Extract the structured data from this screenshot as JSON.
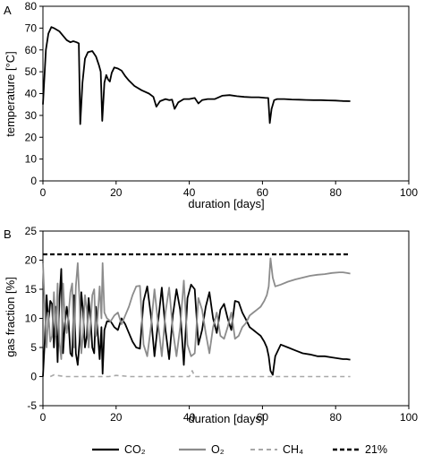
{
  "chart_data": [
    {
      "panel": "A",
      "type": "line",
      "xlabel": "duration [days]",
      "ylabel": "temperature [°C]",
      "xlim": [
        0,
        100
      ],
      "ylim": [
        0,
        80
      ],
      "xticks": [
        0,
        20,
        40,
        60,
        80,
        100
      ],
      "yticks": [
        0,
        10,
        20,
        30,
        40,
        50,
        60,
        70,
        80
      ],
      "grid": false,
      "series": [
        {
          "color": "#000000",
          "x": [
            0,
            0.8,
            1.5,
            2.3,
            3.0,
            4.5,
            5.5,
            6.5,
            7.5,
            8.3,
            9.2,
            9.8,
            10.2,
            10.8,
            11.5,
            12.3,
            13.5,
            14.5,
            15.3,
            15.8,
            16.2,
            16.8,
            17.3,
            17.8,
            18.3,
            18.8,
            19.5,
            20.5,
            21.5,
            22.5,
            23.5,
            25,
            27,
            29,
            30.2,
            31,
            32,
            33.5,
            34.5,
            35.3,
            36,
            37,
            38.5,
            40,
            41.5,
            42.5,
            43.5,
            45,
            47,
            49,
            51,
            53,
            55,
            57,
            59,
            61,
            61.6,
            62.0,
            62.5,
            63.2,
            64,
            66,
            68,
            70,
            72,
            74,
            76,
            78,
            80,
            82,
            84
          ],
          "y": [
            35,
            60,
            67.5,
            70.5,
            70,
            68.5,
            66.5,
            64.5,
            63.5,
            64,
            63.5,
            63,
            26,
            45,
            56,
            59,
            59.5,
            57,
            53,
            50,
            27.5,
            45,
            48.5,
            46.5,
            45.5,
            49.5,
            52,
            51.5,
            50.5,
            48,
            46,
            43.5,
            41.5,
            40,
            38.5,
            34,
            36.5,
            37.5,
            37,
            37.2,
            33,
            36,
            37.5,
            37.5,
            38,
            35.5,
            37,
            37.5,
            37.5,
            39,
            39.3,
            38.8,
            38.5,
            38.3,
            38.3,
            38,
            38,
            26.5,
            33,
            37,
            37.5,
            37.5,
            37.3,
            37.2,
            37.1,
            37,
            37,
            36.9,
            36.8,
            36.6,
            36.5
          ]
        }
      ]
    },
    {
      "panel": "B",
      "type": "line",
      "xlabel": "duration [days]",
      "ylabel": "gas fraction [%]",
      "xlim": [
        0,
        100
      ],
      "ylim": [
        -5,
        25
      ],
      "xticks": [
        0,
        20,
        40,
        60,
        80,
        100
      ],
      "yticks": [
        -5,
        0,
        5,
        10,
        15,
        20,
        25
      ],
      "grid": false,
      "legend_position": "bottom",
      "series": [
        {
          "name": "CO₂",
          "color": "#000000",
          "dash": "solid",
          "x": [
            0,
            0.5,
            1,
            1.5,
            2,
            2.5,
            3,
            3.5,
            4,
            4.5,
            5,
            5.5,
            6,
            6.5,
            7,
            7.5,
            8,
            8.5,
            9,
            9.5,
            10,
            10.5,
            11,
            11.5,
            12,
            12.5,
            13,
            13.5,
            14,
            14.5,
            15,
            15.5,
            16,
            16.3,
            16.8,
            17.5,
            18.5,
            19.5,
            20.5,
            21.5,
            22.5,
            23.5,
            24.5,
            25.5,
            26.5,
            27.5,
            28.5,
            29.5,
            30.5,
            31.5,
            32.5,
            33.5,
            34.5,
            35.5,
            36.5,
            37.5,
            38.5,
            39.5,
            40.5,
            41.5,
            42.5,
            43.5,
            44.5,
            45.5,
            46.5,
            47.5,
            48.5,
            49.5,
            50.5,
            51.5,
            52.5,
            53.5,
            54.5,
            55.5,
            56.5,
            57.5,
            58.5,
            59.5,
            60.5,
            61.2,
            61.7,
            62.2,
            62.8,
            63.5,
            65,
            67,
            69,
            71,
            73,
            75,
            77,
            79,
            81,
            82,
            83,
            84
          ],
          "y": [
            0,
            6,
            14,
            9,
            13,
            12.5,
            5,
            12,
            2.5,
            13,
            18.5,
            4,
            9,
            12,
            9.5,
            4,
            3.5,
            14,
            4,
            2,
            6,
            14.5,
            11,
            5,
            7,
            13.5,
            10,
            5,
            4,
            12,
            7.5,
            3,
            8.5,
            0.5,
            8,
            9.5,
            9.5,
            8.5,
            8,
            10,
            9,
            7.5,
            6,
            5,
            4.8,
            13,
            15.5,
            10.5,
            3.5,
            9.5,
            15.3,
            8,
            3,
            10.5,
            15,
            11.5,
            2,
            13.5,
            15.8,
            15,
            5.5,
            8,
            12,
            14.5,
            10,
            7.5,
            11.5,
            12.5,
            10,
            8,
            13,
            12.8,
            11,
            9.8,
            8.5,
            8,
            7.5,
            7,
            6,
            5,
            3.5,
            1,
            0.3,
            3.5,
            5.5,
            5,
            4.5,
            4,
            3.8,
            3.5,
            3.5,
            3.3,
            3.1,
            3,
            3,
            2.9
          ]
        },
        {
          "name": "O₂",
          "color": "#8c8c8c",
          "dash": "solid",
          "x": [
            0,
            0.5,
            1,
            1.5,
            2,
            2.5,
            3,
            3.5,
            4,
            4.5,
            5,
            5.5,
            6,
            6.5,
            7,
            7.5,
            8,
            8.5,
            9,
            9.5,
            10,
            10.5,
            11,
            11.5,
            12,
            12.5,
            13,
            13.5,
            14,
            14.5,
            15,
            15.5,
            16,
            16.3,
            16.8,
            17.5,
            18.5,
            19.5,
            20.5,
            21.5,
            22.5,
            23.5,
            24.5,
            25.5,
            26.5,
            27.5,
            28.5,
            29.5,
            30.5,
            31.5,
            32.5,
            33.5,
            34.5,
            35.5,
            36.5,
            37.5,
            38.5,
            39.5,
            40.5,
            41.5,
            42.5,
            43.5,
            44.5,
            45.5,
            46.5,
            47.5,
            48.5,
            49.5,
            50.5,
            51.5,
            52.5,
            53.5,
            54.5,
            55.5,
            56.5,
            57.5,
            58.5,
            59.5,
            60.5,
            61.2,
            61.7,
            62.2,
            62.8,
            63.5,
            65,
            67,
            69,
            71,
            73,
            75,
            77,
            79,
            81,
            82,
            83,
            84
          ],
          "y": [
            19.5,
            12,
            5,
            11,
            6,
            7,
            14.5,
            7,
            16,
            6,
            3,
            16,
            10,
            7.5,
            10.5,
            14.5,
            16,
            5,
            15.5,
            19.5,
            13,
            4,
            7.5,
            14,
            11.5,
            5,
            9,
            14,
            15,
            7,
            10.5,
            15.5,
            10,
            19.5,
            11,
            10,
            9.5,
            10.5,
            11,
            9,
            10.5,
            12,
            14,
            15.5,
            15.6,
            5.5,
            3.5,
            8.5,
            15,
            9,
            3.5,
            11,
            15.3,
            8,
            3.5,
            8.5,
            16.5,
            5.5,
            3.5,
            4,
            13.5,
            11.5,
            7.5,
            4,
            8.5,
            11,
            7,
            6.5,
            8.5,
            11,
            6.5,
            7,
            8.5,
            9.2,
            10.5,
            11,
            11.5,
            12,
            13,
            14,
            15.5,
            20.3,
            17,
            15.5,
            15.8,
            16.3,
            16.7,
            17,
            17.3,
            17.5,
            17.6,
            17.8,
            17.9,
            17.9,
            17.8,
            17.7
          ]
        },
        {
          "name": "CH₄",
          "color": "#a8a8a8",
          "dash": "dashed",
          "x": [
            2,
            3,
            6,
            10,
            14,
            18,
            20,
            24,
            28,
            32,
            36,
            40,
            40.8,
            41.5,
            42,
            46,
            50,
            55,
            60,
            62,
            66,
            70,
            75,
            80,
            84
          ],
          "y": [
            0,
            0.3,
            0,
            0,
            0,
            0,
            0.2,
            0,
            0,
            0,
            0,
            0,
            1,
            0,
            0,
            0,
            0,
            0,
            0,
            0,
            0,
            0,
            0,
            0,
            0
          ]
        },
        {
          "name": "21%",
          "color": "#000000",
          "dash": "dashed-bold",
          "x": [
            0,
            84
          ],
          "y": [
            21,
            21
          ]
        }
      ]
    }
  ]
}
